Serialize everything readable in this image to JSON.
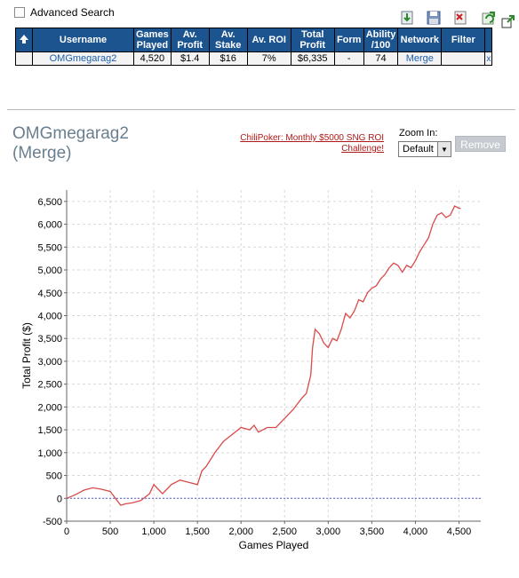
{
  "advanced_search": {
    "label": "Advanced Search",
    "checked": false
  },
  "toolbar": {
    "icons": [
      "download-icon",
      "save-icon",
      "delete-icon",
      "refresh-icon",
      "popout-icon"
    ]
  },
  "table": {
    "headers": [
      "Username",
      "Games\nPlayed",
      "Av.\nProfit",
      "Av.\nStake",
      "Av. ROI",
      "Total\nProfit",
      "Form",
      "Ability\n/100",
      "Network",
      "Filter"
    ],
    "row": {
      "username": "OMGmegarag2",
      "games_played": "4,520",
      "av_profit": "$1.4",
      "av_stake": "$16",
      "av_roi": "7%",
      "total_profit": "$6,335",
      "form": "-",
      "ability": "74",
      "network": "Merge",
      "filter": "",
      "remove_x": "x"
    }
  },
  "player": {
    "name_line1": "OMGmegarag2",
    "name_line2": "(Merge)"
  },
  "promo": {
    "line1": "ChiliPoker: Monthly $5000 SNG ROI",
    "line2": "Challenge!"
  },
  "zoom": {
    "label": "Zoom In:",
    "selected": "Default"
  },
  "remove_button": {
    "label": "Remove"
  },
  "chart_data": {
    "type": "line",
    "xlabel": "Games Played",
    "ylabel": "Total Profit ($)",
    "xlim": [
      0,
      4750
    ],
    "ylim": [
      -500,
      6750
    ],
    "x_ticks": [
      0,
      500,
      1000,
      1500,
      2000,
      2500,
      3000,
      3500,
      4000,
      4500
    ],
    "x_tick_labels": [
      "0",
      "500",
      "1,000",
      "1,500",
      "2,000",
      "2,500",
      "3,000",
      "3,500",
      "4,000",
      "4,500"
    ],
    "y_ticks": [
      -500,
      0,
      500,
      1000,
      1500,
      2000,
      2500,
      3000,
      3500,
      4000,
      4500,
      5000,
      5500,
      6000,
      6500
    ],
    "y_tick_labels": [
      "-500",
      "0",
      "500",
      "1,000",
      "1,500",
      "2,000",
      "2,500",
      "3,000",
      "3,500",
      "4,000",
      "4,500",
      "5,000",
      "5,500",
      "6,000",
      "6,500"
    ],
    "grid": true,
    "line_color": "#d94a4a",
    "zero_line_color": "#5a5ad0",
    "series": [
      {
        "x": [
          0,
          100,
          200,
          300,
          400,
          500,
          560,
          620,
          680,
          750,
          850,
          950,
          1000,
          1050,
          1100,
          1150,
          1200,
          1300,
          1400,
          1500,
          1550,
          1600,
          1700,
          1800,
          1900,
          2000,
          2100,
          2150,
          2200,
          2300,
          2400,
          2500,
          2600,
          2700,
          2750,
          2800,
          2820,
          2850,
          2900,
          2950,
          3000,
          3050,
          3100,
          3150,
          3200,
          3250,
          3300,
          3350,
          3400,
          3450,
          3500,
          3550,
          3600,
          3650,
          3700,
          3750,
          3800,
          3850,
          3900,
          3950,
          4000,
          4050,
          4100,
          4150,
          4200,
          4250,
          4300,
          4350,
          4400,
          4450,
          4500,
          4520
        ],
        "y": [
          0,
          80,
          180,
          230,
          200,
          150,
          0,
          -150,
          -120,
          -100,
          -50,
          100,
          300,
          200,
          100,
          200,
          300,
          400,
          350,
          300,
          600,
          700,
          1000,
          1250,
          1400,
          1550,
          1500,
          1600,
          1450,
          1550,
          1550,
          1750,
          1950,
          2200,
          2300,
          2700,
          3300,
          3700,
          3600,
          3400,
          3300,
          3500,
          3450,
          3700,
          4050,
          3950,
          4100,
          4350,
          4300,
          4500,
          4600,
          4650,
          4800,
          4900,
          5050,
          5150,
          5100,
          4950,
          5100,
          5050,
          5200,
          5400,
          5550,
          5700,
          6000,
          6200,
          6250,
          6150,
          6200,
          6400,
          6350,
          6350
        ]
      }
    ]
  }
}
